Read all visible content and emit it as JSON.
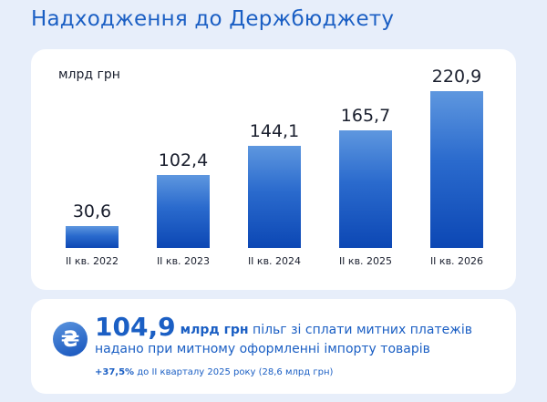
{
  "title": "Надходження до Держбюджету",
  "chart_data": {
    "type": "bar",
    "unit_label": "млрд грн",
    "categories": [
      "II кв. 2022",
      "II кв. 2023",
      "II кв. 2024",
      "II кв. 2025",
      "II кв. 2026"
    ],
    "values": [
      30.6,
      102.4,
      144.1,
      165.7,
      220.9
    ],
    "value_labels": [
      "30,6",
      "102,4",
      "144,1",
      "165,7",
      "220,9"
    ],
    "ylim": [
      0,
      220.9
    ],
    "grid": false,
    "legend": "none",
    "bar_color": "#1a5bc6"
  },
  "info": {
    "icon": "hryvnia-icon",
    "icon_glyph": "₴",
    "amount": "104,9",
    "amount_unit": "млрд грн",
    "text_line1": " пільг зі сплати митних платежів",
    "text_line2": "надано при митному оформленні імпорту товарів",
    "change": "+37,5%",
    "change_text": " до II кварталу 2025 року (28,6 млрд грн)"
  },
  "colors": {
    "accent": "#1b5fc4",
    "background": "#e7eefa",
    "card": "#ffffff",
    "text": "#1a1f2e"
  }
}
